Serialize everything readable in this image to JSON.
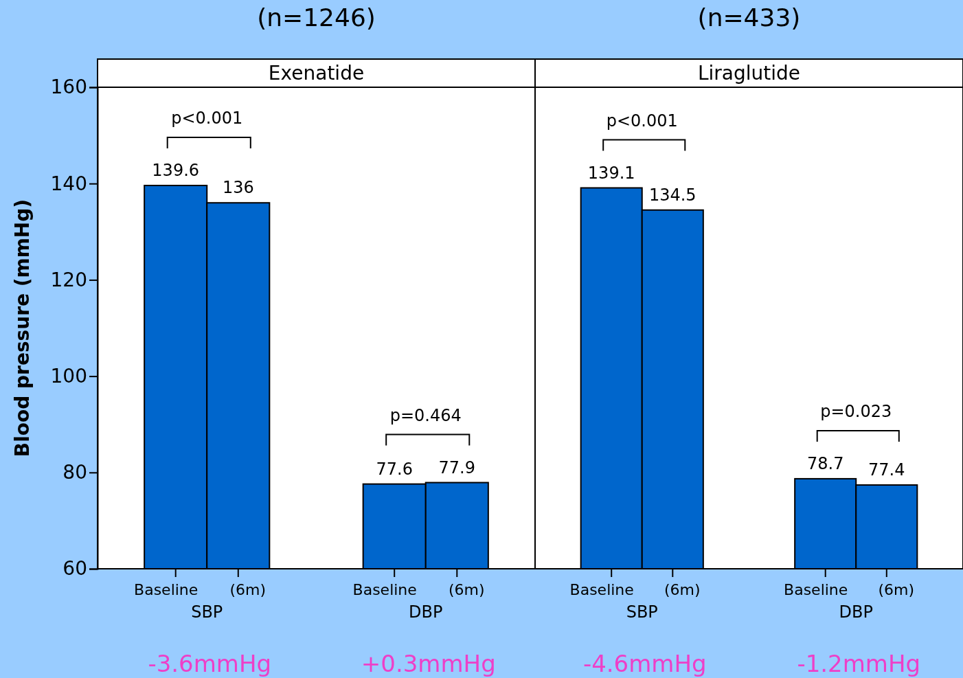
{
  "chart_data": [
    {
      "type": "bar",
      "title": "Exenatide",
      "subtitle": "(n=1246)",
      "ylabel": "Blood pressure (mmHg)",
      "categories": [
        "Baseline",
        "(6m)",
        "Baseline",
        "(6m)"
      ],
      "values": [
        139.6,
        136,
        77.6,
        77.9
      ],
      "color": "#0066cc",
      "data_labels": true,
      "ylim": [
        60,
        160
      ],
      "yticks": [
        60,
        80,
        100,
        120,
        140,
        160
      ],
      "annotations": [
        "p<0.001",
        "p=0.464",
        "SBP",
        "DBP",
        "-3.6mmHg",
        "+0.3mmHg"
      ]
    },
    {
      "type": "bar",
      "title": "Liraglutide",
      "subtitle": "(n=433)",
      "categories": [
        "Baseline",
        "(6m)",
        "Baseline",
        "(6m)"
      ],
      "values": [
        139.1,
        134.5,
        78.7,
        77.4
      ],
      "color": "#0066cc",
      "data_labels": true,
      "ylim": [
        60,
        160
      ],
      "tick_labels": "x",
      "annotations": [
        "p<0.001",
        "p=0.023",
        "SBP",
        "DBP",
        "-4.6mmHg",
        "-1.2mmHg"
      ]
    }
  ]
}
